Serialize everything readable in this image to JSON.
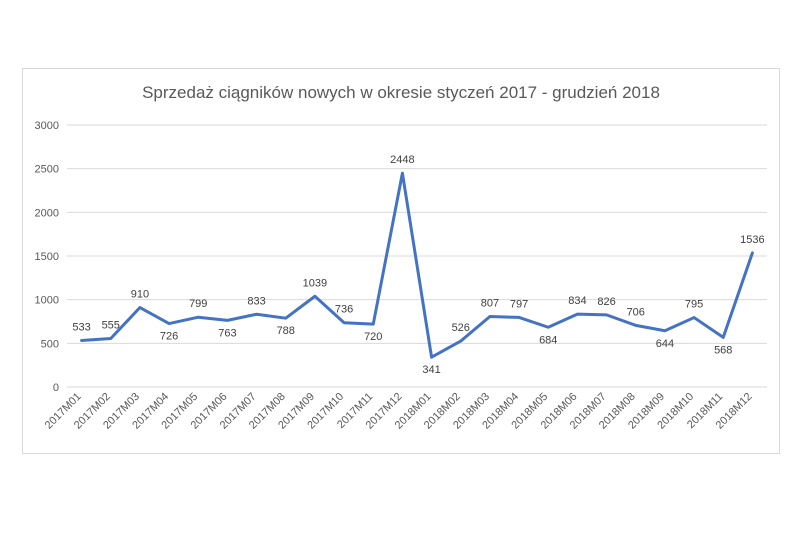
{
  "chart_data": {
    "type": "line",
    "title": "Sprzedaż ciągników nowych w okresie styczeń 2017 - grudzień 2018",
    "xlabel": "",
    "ylabel": "",
    "ylim": [
      0,
      3000
    ],
    "yticks": [
      0,
      500,
      1000,
      1500,
      2000,
      2500,
      3000
    ],
    "grid": true,
    "legend": "none",
    "line_color": "#4472c4",
    "categories": [
      "2017M01",
      "2017M02",
      "2017M03",
      "2017M04",
      "2017M05",
      "2017M06",
      "2017M07",
      "2017M08",
      "2017M09",
      "2017M10",
      "2017M11",
      "2017M12",
      "2018M01",
      "2018M02",
      "2018M03",
      "2018M04",
      "2018M05",
      "2018M06",
      "2018M07",
      "2018M08",
      "2018M09",
      "2018M10",
      "2018M11",
      "2018M12"
    ],
    "series": [
      {
        "values": [
          533,
          555,
          910,
          726,
          799,
          763,
          833,
          788,
          1039,
          736,
          720,
          2448,
          341,
          526,
          807,
          797,
          684,
          834,
          826,
          706,
          644,
          795,
          568,
          1536
        ]
      }
    ]
  }
}
